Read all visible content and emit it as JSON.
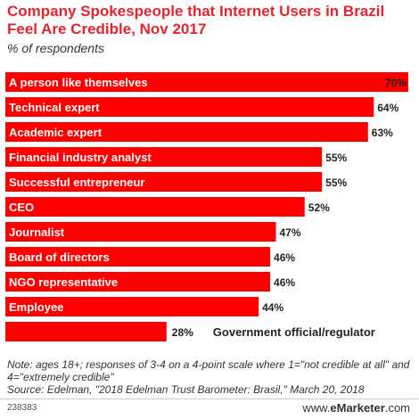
{
  "chart_data": {
    "type": "bar",
    "orientation": "horizontal",
    "title": "Company Spokespeople that Internet Users in Brazil Feel Are Credible, Nov 2017",
    "subtitle": "% of respondents",
    "categories": [
      "A person like themselves",
      "Technical expert",
      "Academic expert",
      "Financial industry analyst",
      "Successful entrepreneur",
      "CEO",
      "Journalist",
      "Board of directors",
      "NGO representative",
      "Employee",
      "Government official/regulator"
    ],
    "values": [
      70,
      64,
      63,
      55,
      55,
      52,
      47,
      46,
      46,
      44,
      28
    ],
    "value_labels": [
      "70%",
      "64%",
      "63%",
      "55%",
      "55%",
      "52%",
      "47%",
      "46%",
      "46%",
      "44%",
      "28%"
    ],
    "xlim": [
      0,
      70
    ],
    "unit": "%",
    "bar_color": "#ff0000",
    "grid": false,
    "legend": "none"
  },
  "note": "Note: ages 18+; responses of 3-4 on a 4-point scale where 1=\"not credible at all\" and 4=\"extremely credible\"",
  "source": "Source: Edelman, \"2018 Edelman Trust Barometer: Brasil,\" March 20, 2018",
  "footer": {
    "chart_id": "238383",
    "brand_prefix": "www.",
    "brand_name": "eMarketer",
    "brand_suffix": ".com"
  },
  "colors": {
    "title": "#e8232c",
    "bar": "#ff0000",
    "text": "#333333"
  }
}
